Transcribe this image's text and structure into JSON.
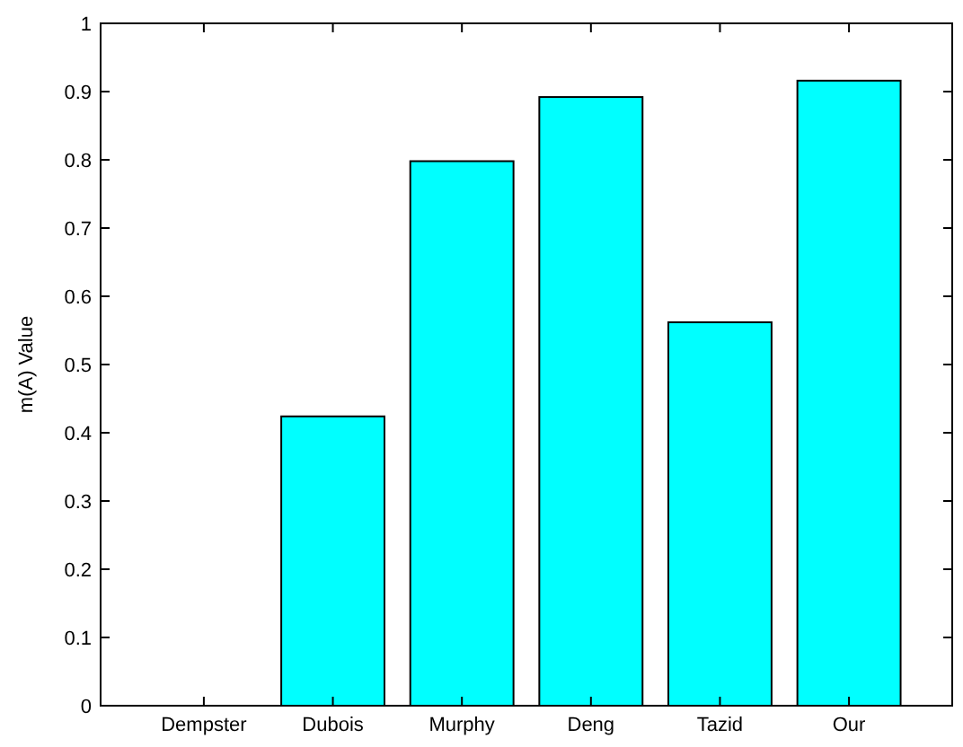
{
  "chart_data": {
    "type": "bar",
    "ylabel": "m(A) Value",
    "categories": [
      "Dempster",
      "Dubois",
      "Murphy",
      "Deng",
      "Tazid",
      "Our"
    ],
    "values": [
      0,
      0.424,
      0.798,
      0.892,
      0.562,
      0.916
    ],
    "color": "#00ffff",
    "ylim": [
      0,
      1
    ],
    "yticks": [
      0,
      0.1,
      0.2,
      0.3,
      0.4,
      0.5,
      0.6,
      0.7,
      0.8,
      0.9,
      1
    ],
    "grid": false
  }
}
